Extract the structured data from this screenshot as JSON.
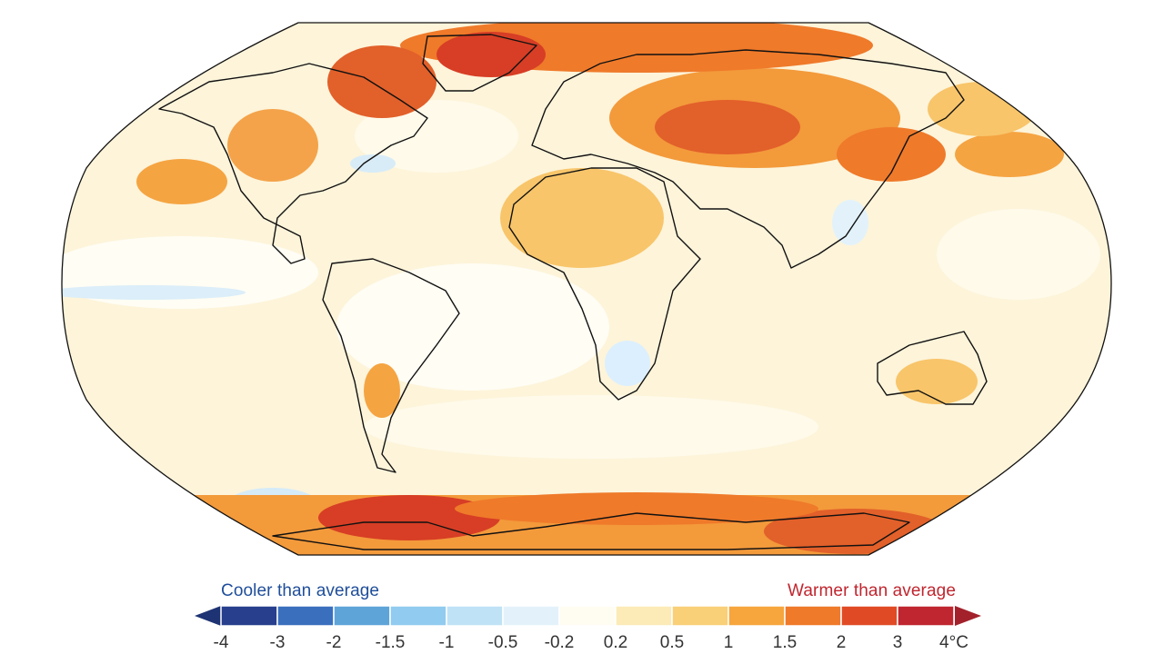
{
  "legend": {
    "cooler_label": "Cooler than average",
    "warmer_label": "Warmer than average",
    "cooler_color": "#1f4e9a",
    "warmer_color": "#c0262f",
    "ticks": [
      "-4",
      "-3",
      "-2",
      "-1.5",
      "-1",
      "-0.5",
      "-0.2",
      "0.2",
      "0.5",
      "1",
      "1.5",
      "2",
      "3",
      "4°C"
    ],
    "bin_colors": [
      "#273f8d",
      "#3a6fbe",
      "#5ea4d9",
      "#91cbef",
      "#bfe2f6",
      "#e3f2fa",
      "#fffdf2",
      "#fceab7",
      "#f9cf78",
      "#f6a63c",
      "#ef7a2a",
      "#e04b25",
      "#c0262f"
    ],
    "arrow_low_color": "#1e3373",
    "arrow_high_color": "#a3212b"
  },
  "map": {
    "projection": "Robinson",
    "ocean_color": "#fdf4da",
    "outline_color": "#111111"
  }
}
